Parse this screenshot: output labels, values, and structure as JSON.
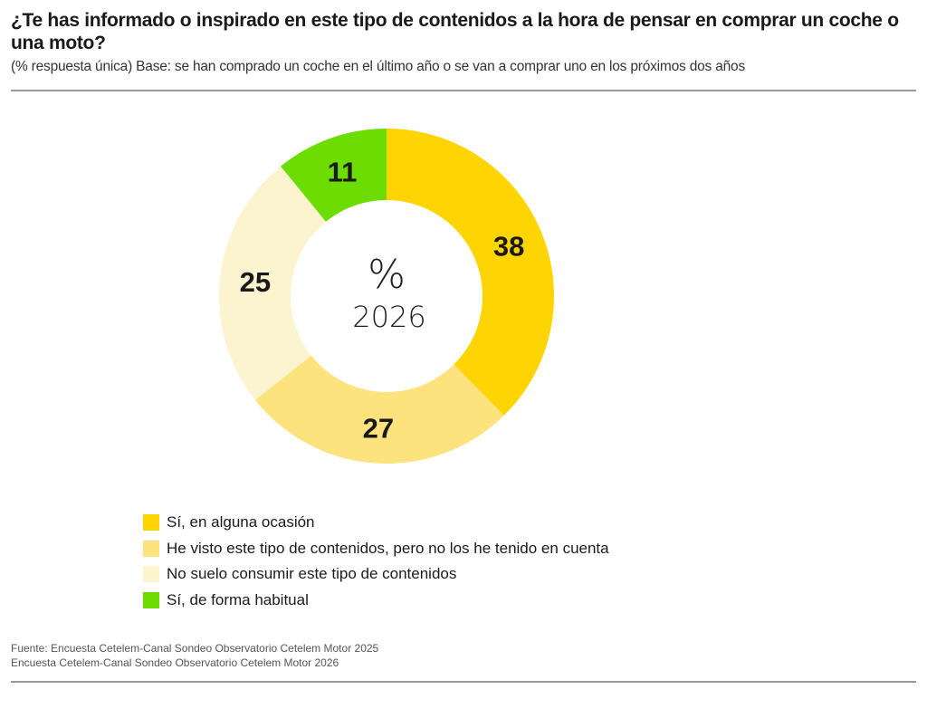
{
  "header": {
    "title": "¿Te has informado o inspirado en este tipo de contenidos a la hora de pensar en comprar un coche o una moto?",
    "subtitle": "(% respuesta única) Base: se han comprado un coche en el último año o se van a comprar uno en los próximos dos años"
  },
  "chart_data": {
    "type": "pie",
    "variant": "donut",
    "title": "¿Te has informado o inspirado en este tipo de contenidos a la hora de pensar en comprar un coche o una moto?",
    "center_label": {
      "symbol": "%",
      "year": "2026"
    },
    "unit": "%",
    "start_angle": "12 o'clock",
    "direction": "clockwise",
    "slices": [
      {
        "label": "Sí, en alguna ocasión",
        "value": 38,
        "color": "#FFD400"
      },
      {
        "label": "He visto este tipo de contenidos, pero no los he tenido en cuenta",
        "value": 27,
        "color": "#FCE37E"
      },
      {
        "label": "No suelo consumir este tipo de contenidos",
        "value": 25,
        "color": "#FCF3CF"
      },
      {
        "label": "Sí, de forma habitual",
        "value": 11,
        "color": "#6DDC00"
      }
    ],
    "legend_position": "bottom-left"
  },
  "footer": {
    "source_line1": "Fuente: Encuesta Cetelem-Canal Sondeo Observatorio Cetelem Motor 2025",
    "source_line2": "Encuesta Cetelem-Canal Sondeo Observatorio Cetelem Motor 2026"
  }
}
